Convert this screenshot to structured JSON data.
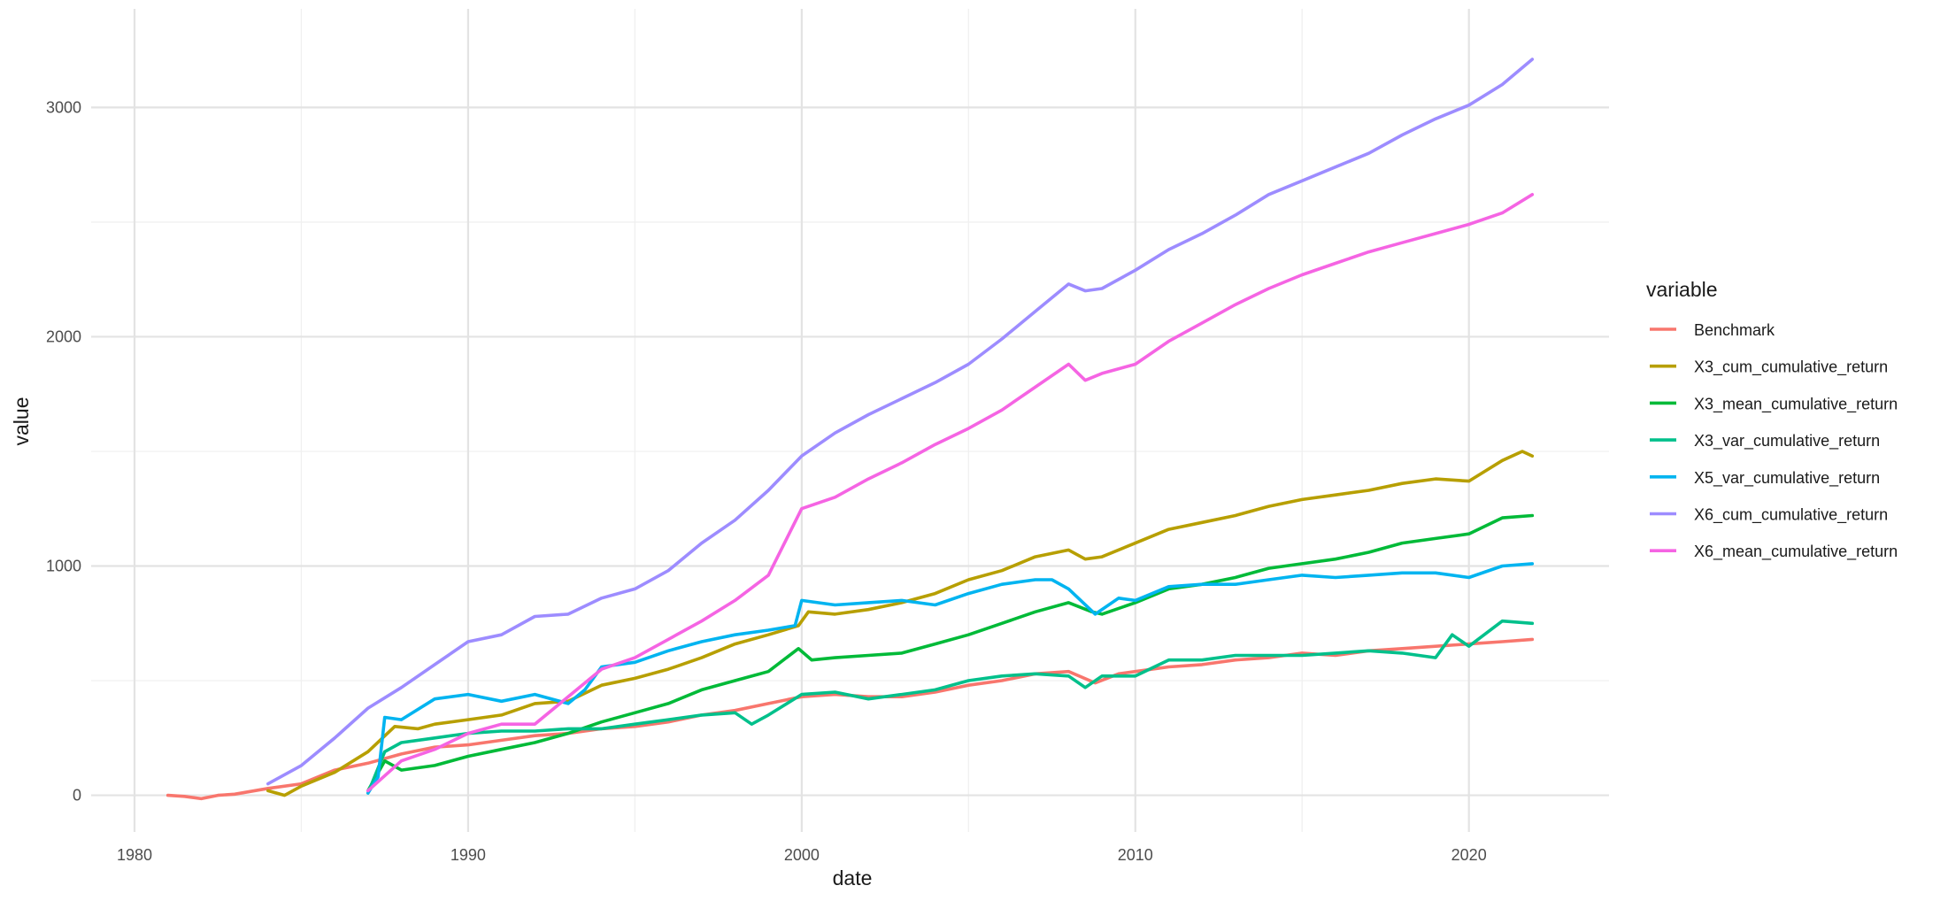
{
  "chart_data": {
    "type": "line",
    "title": "",
    "xlabel": "date",
    "ylabel": "value",
    "xlim": [
      1978.7,
      2024.2
    ],
    "ylim": [
      -160,
      3430
    ],
    "x_ticks": [
      1980,
      1990,
      2000,
      2010,
      2020
    ],
    "x_tick_labels": [
      "1980",
      "1990",
      "2000",
      "2010",
      "2020"
    ],
    "y_ticks": [
      0,
      1000,
      2000,
      3000
    ],
    "y_tick_labels": [
      "0",
      "1000",
      "2000",
      "3000"
    ],
    "grid": true,
    "legend": {
      "title": "variable",
      "position": "right"
    },
    "series": [
      {
        "name": "Benchmark",
        "color": "#F8766D",
        "points": [
          [
            1981.0,
            0
          ],
          [
            1981.5,
            -5
          ],
          [
            1982.0,
            -15
          ],
          [
            1982.5,
            0
          ],
          [
            1983.0,
            5
          ],
          [
            1984.0,
            30
          ],
          [
            1985.0,
            50
          ],
          [
            1986.0,
            110
          ],
          [
            1987.0,
            140
          ],
          [
            1988.0,
            180
          ],
          [
            1989.0,
            210
          ],
          [
            1990.0,
            220
          ],
          [
            1991.0,
            240
          ],
          [
            1992.0,
            260
          ],
          [
            1993.0,
            270
          ],
          [
            1994.0,
            290
          ],
          [
            1995.0,
            300
          ],
          [
            1996.0,
            320
          ],
          [
            1997.0,
            350
          ],
          [
            1998.0,
            370
          ],
          [
            1999.0,
            400
          ],
          [
            2000.0,
            430
          ],
          [
            2001.0,
            440
          ],
          [
            2002.0,
            430
          ],
          [
            2003.0,
            430
          ],
          [
            2004.0,
            450
          ],
          [
            2005.0,
            480
          ],
          [
            2006.0,
            500
          ],
          [
            2007.0,
            530
          ],
          [
            2008.0,
            540
          ],
          [
            2008.8,
            490
          ],
          [
            2009.5,
            530
          ],
          [
            2010.0,
            540
          ],
          [
            2011.0,
            560
          ],
          [
            2012.0,
            570
          ],
          [
            2013.0,
            590
          ],
          [
            2014.0,
            600
          ],
          [
            2015.0,
            620
          ],
          [
            2016.0,
            610
          ],
          [
            2017.0,
            630
          ],
          [
            2018.0,
            640
          ],
          [
            2019.0,
            650
          ],
          [
            2020.0,
            660
          ],
          [
            2021.0,
            670
          ],
          [
            2021.9,
            680
          ]
        ]
      },
      {
        "name": "X3_cum_cumulative_return",
        "color": "#B79F00",
        "points": [
          [
            1984.0,
            20
          ],
          [
            1984.5,
            0
          ],
          [
            1985.0,
            40
          ],
          [
            1986.0,
            100
          ],
          [
            1987.0,
            190
          ],
          [
            1987.8,
            300
          ],
          [
            1988.5,
            290
          ],
          [
            1989.0,
            310
          ],
          [
            1990.0,
            330
          ],
          [
            1991.0,
            350
          ],
          [
            1992.0,
            400
          ],
          [
            1993.0,
            410
          ],
          [
            1994.0,
            480
          ],
          [
            1995.0,
            510
          ],
          [
            1996.0,
            550
          ],
          [
            1997.0,
            600
          ],
          [
            1998.0,
            660
          ],
          [
            1999.0,
            700
          ],
          [
            1999.9,
            740
          ],
          [
            2000.2,
            800
          ],
          [
            2001.0,
            790
          ],
          [
            2002.0,
            810
          ],
          [
            2003.0,
            840
          ],
          [
            2004.0,
            880
          ],
          [
            2005.0,
            940
          ],
          [
            2006.0,
            980
          ],
          [
            2007.0,
            1040
          ],
          [
            2008.0,
            1070
          ],
          [
            2008.5,
            1030
          ],
          [
            2009.0,
            1040
          ],
          [
            2010.0,
            1100
          ],
          [
            2011.0,
            1160
          ],
          [
            2012.0,
            1190
          ],
          [
            2013.0,
            1220
          ],
          [
            2014.0,
            1260
          ],
          [
            2015.0,
            1290
          ],
          [
            2016.0,
            1310
          ],
          [
            2017.0,
            1330
          ],
          [
            2018.0,
            1360
          ],
          [
            2019.0,
            1380
          ],
          [
            2020.0,
            1370
          ],
          [
            2021.0,
            1460
          ],
          [
            2021.6,
            1500
          ],
          [
            2021.9,
            1480
          ]
        ]
      },
      {
        "name": "X3_mean_cumulative_return",
        "color": "#00BA38",
        "points": [
          [
            1987.0,
            20
          ],
          [
            1987.5,
            150
          ],
          [
            1988.0,
            110
          ],
          [
            1989.0,
            130
          ],
          [
            1990.0,
            170
          ],
          [
            1991.0,
            200
          ],
          [
            1992.0,
            230
          ],
          [
            1993.0,
            270
          ],
          [
            1994.0,
            320
          ],
          [
            1995.0,
            360
          ],
          [
            1996.0,
            400
          ],
          [
            1997.0,
            460
          ],
          [
            1998.0,
            500
          ],
          [
            1999.0,
            540
          ],
          [
            1999.9,
            640
          ],
          [
            2000.3,
            590
          ],
          [
            2001.0,
            600
          ],
          [
            2002.0,
            610
          ],
          [
            2003.0,
            620
          ],
          [
            2004.0,
            660
          ],
          [
            2005.0,
            700
          ],
          [
            2006.0,
            750
          ],
          [
            2007.0,
            800
          ],
          [
            2008.0,
            840
          ],
          [
            2008.7,
            800
          ],
          [
            2009.0,
            790
          ],
          [
            2010.0,
            840
          ],
          [
            2011.0,
            900
          ],
          [
            2012.0,
            920
          ],
          [
            2013.0,
            950
          ],
          [
            2014.0,
            990
          ],
          [
            2015.0,
            1010
          ],
          [
            2016.0,
            1030
          ],
          [
            2017.0,
            1060
          ],
          [
            2018.0,
            1100
          ],
          [
            2019.0,
            1120
          ],
          [
            2020.0,
            1140
          ],
          [
            2021.0,
            1210
          ],
          [
            2021.9,
            1220
          ]
        ]
      },
      {
        "name": "X3_var_cumulative_return",
        "color": "#00C08B",
        "points": [
          [
            1987.0,
            10
          ],
          [
            1987.5,
            190
          ],
          [
            1988.0,
            230
          ],
          [
            1989.0,
            250
          ],
          [
            1990.0,
            270
          ],
          [
            1991.0,
            280
          ],
          [
            1992.0,
            280
          ],
          [
            1993.0,
            290
          ],
          [
            1994.0,
            290
          ],
          [
            1995.0,
            310
          ],
          [
            1996.0,
            330
          ],
          [
            1997.0,
            350
          ],
          [
            1998.0,
            360
          ],
          [
            1998.5,
            310
          ],
          [
            1999.0,
            350
          ],
          [
            2000.0,
            440
          ],
          [
            2001.0,
            450
          ],
          [
            2002.0,
            420
          ],
          [
            2003.0,
            440
          ],
          [
            2004.0,
            460
          ],
          [
            2005.0,
            500
          ],
          [
            2006.0,
            520
          ],
          [
            2007.0,
            530
          ],
          [
            2008.0,
            520
          ],
          [
            2008.5,
            470
          ],
          [
            2009.0,
            520
          ],
          [
            2010.0,
            520
          ],
          [
            2011.0,
            590
          ],
          [
            2012.0,
            590
          ],
          [
            2013.0,
            610
          ],
          [
            2014.0,
            610
          ],
          [
            2015.0,
            610
          ],
          [
            2016.0,
            620
          ],
          [
            2017.0,
            630
          ],
          [
            2018.0,
            620
          ],
          [
            2019.0,
            600
          ],
          [
            2019.5,
            700
          ],
          [
            2020.0,
            650
          ],
          [
            2021.0,
            760
          ],
          [
            2021.9,
            750
          ]
        ]
      },
      {
        "name": "X5_var_cumulative_return",
        "color": "#00B4F0",
        "points": [
          [
            1987.0,
            10
          ],
          [
            1987.3,
            80
          ],
          [
            1987.5,
            340
          ],
          [
            1988.0,
            330
          ],
          [
            1989.0,
            420
          ],
          [
            1990.0,
            440
          ],
          [
            1991.0,
            410
          ],
          [
            1992.0,
            440
          ],
          [
            1993.0,
            400
          ],
          [
            1993.5,
            460
          ],
          [
            1994.0,
            560
          ],
          [
            1995.0,
            580
          ],
          [
            1996.0,
            630
          ],
          [
            1997.0,
            670
          ],
          [
            1998.0,
            700
          ],
          [
            1999.0,
            720
          ],
          [
            1999.8,
            740
          ],
          [
            2000.0,
            850
          ],
          [
            2001.0,
            830
          ],
          [
            2002.0,
            840
          ],
          [
            2003.0,
            850
          ],
          [
            2004.0,
            830
          ],
          [
            2005.0,
            880
          ],
          [
            2006.0,
            920
          ],
          [
            2007.0,
            940
          ],
          [
            2007.5,
            940
          ],
          [
            2008.0,
            900
          ],
          [
            2008.8,
            790
          ],
          [
            2009.5,
            860
          ],
          [
            2010.0,
            850
          ],
          [
            2011.0,
            910
          ],
          [
            2012.0,
            920
          ],
          [
            2013.0,
            920
          ],
          [
            2014.0,
            940
          ],
          [
            2015.0,
            960
          ],
          [
            2016.0,
            950
          ],
          [
            2017.0,
            960
          ],
          [
            2018.0,
            970
          ],
          [
            2019.0,
            970
          ],
          [
            2020.0,
            950
          ],
          [
            2021.0,
            1000
          ],
          [
            2021.9,
            1010
          ]
        ]
      },
      {
        "name": "X6_cum_cumulative_return",
        "color": "#9D8CFF",
        "points": [
          [
            1984.0,
            50
          ],
          [
            1985.0,
            130
          ],
          [
            1986.0,
            250
          ],
          [
            1987.0,
            380
          ],
          [
            1988.0,
            470
          ],
          [
            1989.0,
            570
          ],
          [
            1990.0,
            670
          ],
          [
            1991.0,
            700
          ],
          [
            1992.0,
            780
          ],
          [
            1993.0,
            790
          ],
          [
            1994.0,
            860
          ],
          [
            1995.0,
            900
          ],
          [
            1996.0,
            980
          ],
          [
            1997.0,
            1100
          ],
          [
            1998.0,
            1200
          ],
          [
            1999.0,
            1330
          ],
          [
            2000.0,
            1480
          ],
          [
            2001.0,
            1580
          ],
          [
            2002.0,
            1660
          ],
          [
            2003.0,
            1730
          ],
          [
            2004.0,
            1800
          ],
          [
            2005.0,
            1880
          ],
          [
            2006.0,
            1990
          ],
          [
            2007.0,
            2110
          ],
          [
            2008.0,
            2230
          ],
          [
            2008.5,
            2200
          ],
          [
            2009.0,
            2210
          ],
          [
            2010.0,
            2290
          ],
          [
            2011.0,
            2380
          ],
          [
            2012.0,
            2450
          ],
          [
            2013.0,
            2530
          ],
          [
            2014.0,
            2620
          ],
          [
            2015.0,
            2680
          ],
          [
            2016.0,
            2740
          ],
          [
            2017.0,
            2800
          ],
          [
            2018.0,
            2880
          ],
          [
            2019.0,
            2950
          ],
          [
            2020.0,
            3010
          ],
          [
            2021.0,
            3100
          ],
          [
            2021.9,
            3210
          ]
        ]
      },
      {
        "name": "X6_mean_cumulative_return",
        "color": "#F564E3",
        "points": [
          [
            1987.0,
            20
          ],
          [
            1988.0,
            150
          ],
          [
            1989.0,
            200
          ],
          [
            1990.0,
            270
          ],
          [
            1991.0,
            310
          ],
          [
            1992.0,
            310
          ],
          [
            1993.0,
            430
          ],
          [
            1994.0,
            550
          ],
          [
            1995.0,
            600
          ],
          [
            1996.0,
            680
          ],
          [
            1997.0,
            760
          ],
          [
            1998.0,
            850
          ],
          [
            1999.0,
            960
          ],
          [
            2000.0,
            1250
          ],
          [
            2001.0,
            1300
          ],
          [
            2002.0,
            1380
          ],
          [
            2003.0,
            1450
          ],
          [
            2004.0,
            1530
          ],
          [
            2005.0,
            1600
          ],
          [
            2006.0,
            1680
          ],
          [
            2007.0,
            1780
          ],
          [
            2008.0,
            1880
          ],
          [
            2008.5,
            1810
          ],
          [
            2009.0,
            1840
          ],
          [
            2010.0,
            1880
          ],
          [
            2011.0,
            1980
          ],
          [
            2012.0,
            2060
          ],
          [
            2013.0,
            2140
          ],
          [
            2014.0,
            2210
          ],
          [
            2015.0,
            2270
          ],
          [
            2016.0,
            2320
          ],
          [
            2017.0,
            2370
          ],
          [
            2018.0,
            2410
          ],
          [
            2019.0,
            2450
          ],
          [
            2020.0,
            2490
          ],
          [
            2021.0,
            2540
          ],
          [
            2021.9,
            2620
          ]
        ]
      }
    ]
  }
}
